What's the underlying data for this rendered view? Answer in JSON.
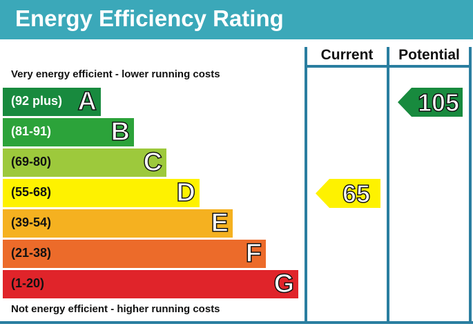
{
  "title": "Energy Efficiency Rating",
  "columns": {
    "current": "Current",
    "potential": "Potential"
  },
  "top_note": "Very energy efficient - lower running costs",
  "bottom_note": "Not energy efficient - higher running costs",
  "colors": {
    "header": "#3ba8b9",
    "grid": "#2a7ea0"
  },
  "chart_data": {
    "type": "bar",
    "categories": [
      "A",
      "B",
      "C",
      "D",
      "E",
      "F",
      "G"
    ],
    "bands": [
      {
        "letter": "A",
        "range": "(92 plus)",
        "min": 92,
        "max": null,
        "color": "#188a3e",
        "range_color": "#ffffff"
      },
      {
        "letter": "B",
        "range": "(81-91)",
        "min": 81,
        "max": 91,
        "color": "#2ca33a",
        "range_color": "#ffffff"
      },
      {
        "letter": "C",
        "range": "(69-80)",
        "min": 69,
        "max": 80,
        "color": "#9dc93c",
        "range_color": "#111111"
      },
      {
        "letter": "D",
        "range": "(55-68)",
        "min": 55,
        "max": 68,
        "color": "#fef200",
        "range_color": "#111111"
      },
      {
        "letter": "E",
        "range": "(39-54)",
        "min": 39,
        "max": 54,
        "color": "#f5b120",
        "range_color": "#111111"
      },
      {
        "letter": "F",
        "range": "(21-38)",
        "min": 21,
        "max": 38,
        "color": "#ec6b2a",
        "range_color": "#111111"
      },
      {
        "letter": "G",
        "range": "(1-20)",
        "min": 1,
        "max": 20,
        "color": "#e0242a",
        "range_color": "#111111"
      }
    ],
    "ratings": {
      "current": {
        "value": 65,
        "band": "D",
        "color": "#fef200"
      },
      "potential": {
        "value": 105,
        "band": "A",
        "color": "#188a3e"
      }
    }
  }
}
